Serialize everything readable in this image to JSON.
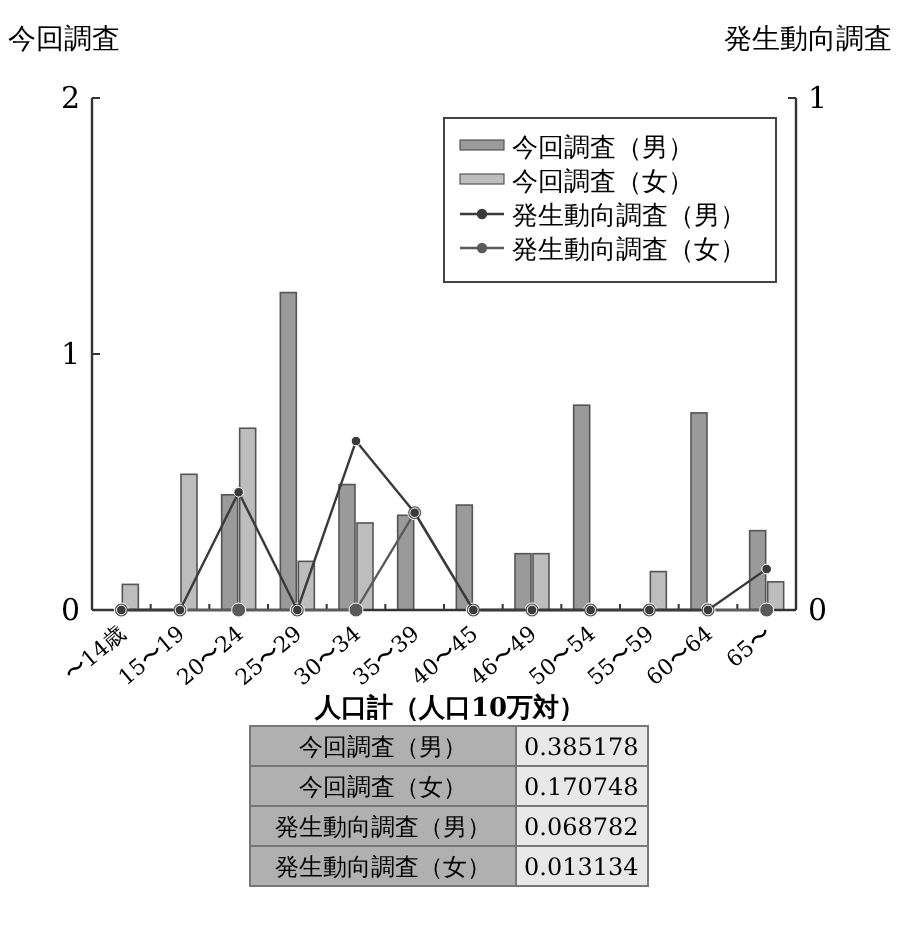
{
  "chart_data": {
    "type": "bar",
    "ylabel": "今回調査",
    "y2label": "発生動向調査",
    "categories": [
      "〜14歳",
      "15〜19",
      "20〜24",
      "25〜29",
      "30〜34",
      "35〜39",
      "40〜45",
      "46〜49",
      "50〜54",
      "55〜59",
      "60〜64",
      "65〜"
    ],
    "series": [
      {
        "name": "今回調査（男）",
        "color": "#9a9a9a",
        "values": [
          0,
          0,
          0.45,
          1.24,
          0.49,
          0.37,
          0.41,
          0.22,
          0.8,
          0,
          0.77,
          0.31
        ]
      },
      {
        "name": "今回調査（女）",
        "color": "#bdbdbd",
        "values": [
          0.1,
          0.53,
          0.71,
          0.19,
          0.34,
          0,
          0,
          0.22,
          0,
          0.15,
          0,
          0.11
        ]
      },
      {
        "name": "発生動向調査（男）",
        "type": "line",
        "axis": "y2",
        "color": "#3a3a3a",
        "values": [
          0,
          0,
          0.23,
          0,
          0.33,
          0.19,
          0,
          0,
          0,
          0,
          0,
          0.08
        ]
      },
      {
        "name": "発生動向調査（女）",
        "type": "line",
        "axis": "y2",
        "color": "#5a5a5a",
        "values": [
          0,
          0,
          0,
          0,
          0,
          0.19,
          0,
          0,
          0,
          0,
          0,
          0
        ]
      }
    ],
    "ylim": [
      0,
      2
    ],
    "yticks": [
      0,
      1,
      2
    ],
    "y2lim": [
      0,
      1
    ],
    "y2ticks": [
      0,
      1
    ],
    "marker": "circle",
    "legend": "top right",
    "grid": false,
    "annotations": [
      "人口計（人口10万対）",
      "今回調査（男）",
      "0.385178",
      "今回調査（女）",
      "0.170748",
      "発生動向調査（男）",
      "0.068782",
      "発生動向調査（女）",
      "0.013134"
    ]
  }
}
